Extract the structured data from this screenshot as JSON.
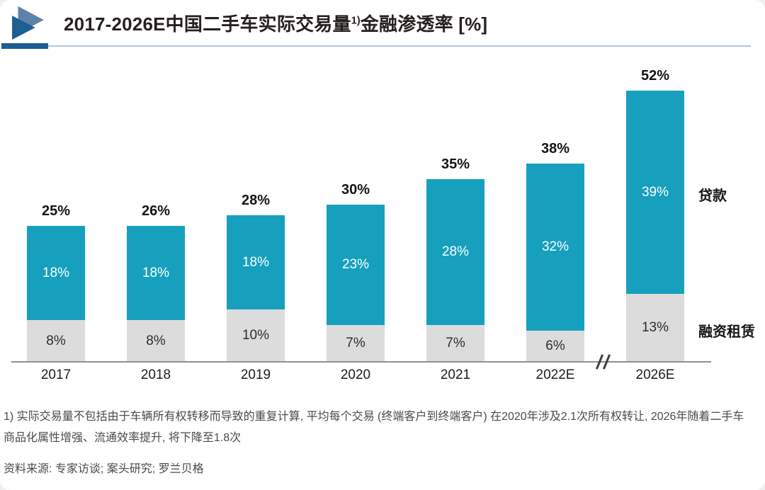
{
  "header": {
    "title_prefix": "2017-2026E中国二手车实际交易量",
    "title_superscript": "1)",
    "title_suffix": "金融渗透率 [%]"
  },
  "chart_data": {
    "type": "bar",
    "stacked": true,
    "title": "2017-2026E中国二手车实际交易量金融渗透率 [%]",
    "categories": [
      "2017",
      "2018",
      "2019",
      "2020",
      "2021",
      "2022E",
      "2026E"
    ],
    "series": [
      {
        "name": "融资租赁",
        "color": "#DCDCDC",
        "label_color": "#2d2d2d",
        "values": [
          8,
          8,
          10,
          7,
          7,
          6,
          13
        ]
      },
      {
        "name": "贷款",
        "color": "#16A0BE",
        "label_color": "#ffffff",
        "values": [
          18,
          18,
          18,
          23,
          28,
          32,
          39
        ]
      }
    ],
    "totals": [
      25,
      26,
      28,
      30,
      35,
      38,
      52
    ],
    "unit": "%",
    "ylim": [
      0,
      52
    ],
    "grid": false,
    "legend_position": "right",
    "axis_break_after": "2022E"
  },
  "colors": {
    "accent_dark_blue": "#1D5C94",
    "accent_light_blue": "#B3C6DC",
    "logo_light": "#5D82AB",
    "logo_dark": "#1E5E92",
    "bar_teal": "#16A0BE",
    "bar_gray": "#DCDCDC",
    "axis_gray": "#8f8f8f"
  },
  "footnote": "1) 实际交易量不包括由于车辆所有权转移而导致的重复计算, 平均每个交易 (终端客户到终端客户) 在2020年涉及2.1次所有权转让, 2026年随着二手车商品化属性增强、流通效率提升, 将下降至1.8次",
  "source": "资料来源: 专家访谈; 案头研究; 罗兰贝格"
}
